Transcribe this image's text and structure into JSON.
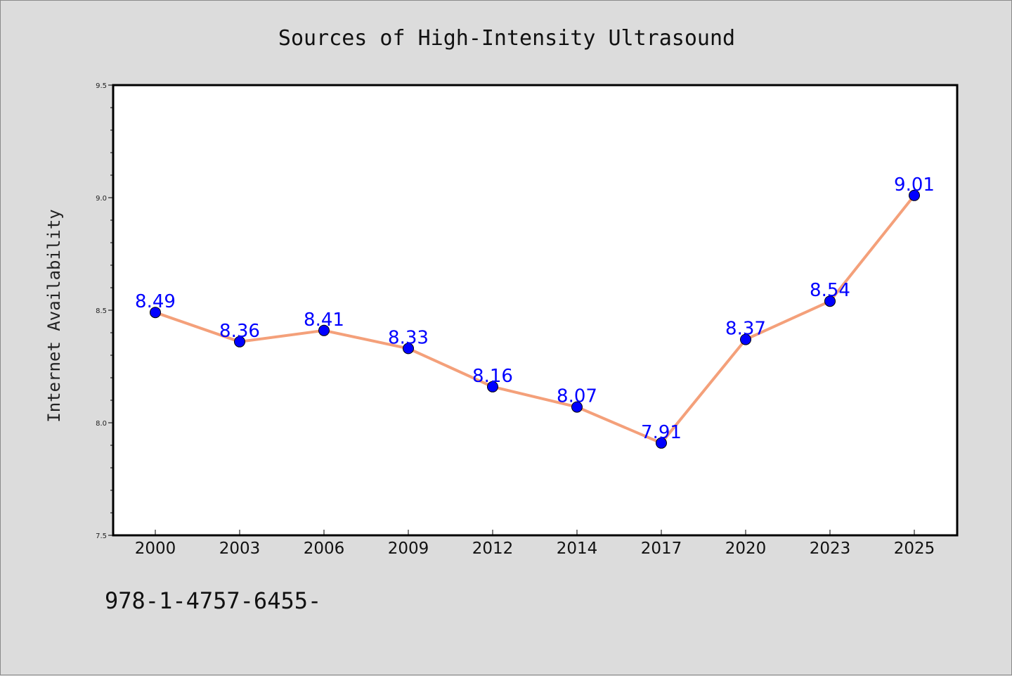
{
  "chart_data": {
    "type": "line",
    "title": "Sources of High-Intensity Ultrasound",
    "ylabel": "Internet Availability",
    "xlabel": "",
    "categories": [
      "2000",
      "2003",
      "2006",
      "2009",
      "2012",
      "2014",
      "2017",
      "2020",
      "2023",
      "2025"
    ],
    "series": [
      {
        "values": [
          8.49,
          8.36,
          8.41,
          8.33,
          8.16,
          8.07,
          7.91,
          8.37,
          8.54,
          9.01
        ],
        "labels": [
          "8.49",
          "8.36",
          "8.41",
          "8.33",
          "8.16",
          "8.07",
          "7.91",
          "8.37",
          "8.54",
          "9.01"
        ],
        "line_color": "#f4a07a",
        "marker_color": "#0000ff"
      }
    ],
    "ylim": [
      7.5,
      9.5
    ],
    "yticks": [
      "7.5",
      "8.0",
      "8.5",
      "9.0",
      "9.5"
    ],
    "grid": false,
    "legend": "none"
  },
  "footer": {
    "text": "978-1-4757-6455-"
  },
  "colors": {
    "background": "#dcdcdc",
    "plot_background": "#ffffff",
    "axis": "#000000"
  }
}
